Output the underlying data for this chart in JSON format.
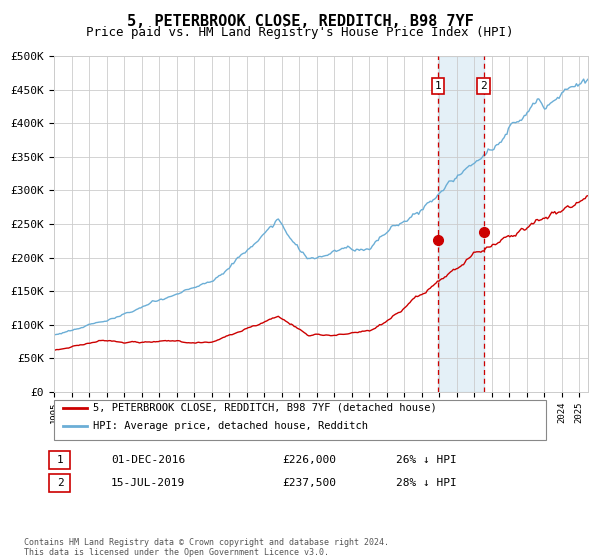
{
  "title": "5, PETERBROOK CLOSE, REDDITCH, B98 7YF",
  "subtitle": "Price paid vs. HM Land Registry's House Price Index (HPI)",
  "title_fontsize": 11,
  "subtitle_fontsize": 9,
  "background_color": "#ffffff",
  "grid_color": "#cccccc",
  "hpi_color": "#6baed6",
  "price_color": "#cc0000",
  "ylabel_ticks": [
    "£0",
    "£50K",
    "£100K",
    "£150K",
    "£200K",
    "£250K",
    "£300K",
    "£350K",
    "£400K",
    "£450K",
    "£500K"
  ],
  "ylabel_values": [
    0,
    50000,
    100000,
    150000,
    200000,
    250000,
    300000,
    350000,
    400000,
    450000,
    500000
  ],
  "xlim_start": 1995.0,
  "xlim_end": 2025.5,
  "ylim_min": 0,
  "ylim_max": 500000,
  "event1_date": 2016.92,
  "event1_price": 226000,
  "event2_date": 2019.54,
  "event2_price": 237500,
  "event1_label": "1",
  "event2_label": "2",
  "event1_table": "01-DEC-2016",
  "event1_amount": "£226,000",
  "event1_pct": "26% ↓ HPI",
  "event2_table": "15-JUL-2019",
  "event2_amount": "£237,500",
  "event2_pct": "28% ↓ HPI",
  "legend_line1": "5, PETERBROOK CLOSE, REDDITCH, B98 7YF (detached house)",
  "legend_line2": "HPI: Average price, detached house, Redditch",
  "footnote": "Contains HM Land Registry data © Crown copyright and database right 2024.\nThis data is licensed under the Open Government Licence v3.0."
}
